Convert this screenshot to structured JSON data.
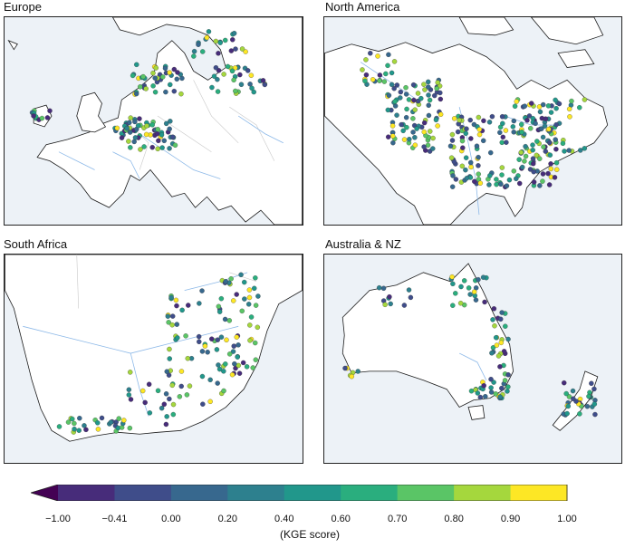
{
  "panels": {
    "europe": {
      "title": "Europe"
    },
    "north_america": {
      "title": "North America"
    },
    "south_africa": {
      "title": "South Africa"
    },
    "australia_nz": {
      "title": "Australia & NZ"
    }
  },
  "colorbar": {
    "label": "(KGE score)",
    "ticks": [
      "−1.00",
      "−0.41",
      "0.00",
      "0.20",
      "0.40",
      "0.60",
      "0.70",
      "0.80",
      "0.90",
      "1.00"
    ],
    "colors": [
      "#472c7a",
      "#3f4d8a",
      "#37688e",
      "#2d808e",
      "#21978b",
      "#2aae7e",
      "#5ac566",
      "#a5d73d",
      "#fde725"
    ],
    "extend_color": "#440154"
  },
  "colors": {
    "ocean": "#edf2f7",
    "land": "#ffffff",
    "coastline": "#1a1a1a",
    "rivers": "#8db9e8",
    "borders": "#c8c8c8"
  }
}
